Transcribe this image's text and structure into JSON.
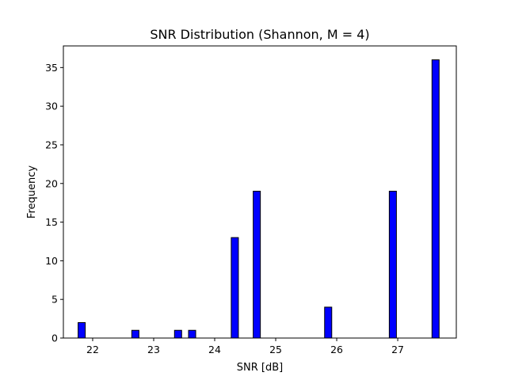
{
  "chart_data": {
    "type": "bar",
    "title": "SNR Distribution (Shannon, M = 4)",
    "xlabel": "SNR [dB]",
    "ylabel": "Frequency",
    "xlim": [
      21.52,
      27.96
    ],
    "ylim": [
      0,
      37.8
    ],
    "xticks": [
      22,
      23,
      24,
      25,
      26,
      27
    ],
    "yticks": [
      0,
      5,
      10,
      15,
      20,
      25,
      30,
      35
    ],
    "bar_color": "#0000ff",
    "bar_edge_color": "#000000",
    "bin_width": 0.117,
    "bars": [
      {
        "x": 21.82,
        "value": 2
      },
      {
        "x": 22.7,
        "value": 1
      },
      {
        "x": 23.4,
        "value": 1
      },
      {
        "x": 23.63,
        "value": 1
      },
      {
        "x": 24.33,
        "value": 13
      },
      {
        "x": 24.69,
        "value": 19
      },
      {
        "x": 25.86,
        "value": 4
      },
      {
        "x": 26.92,
        "value": 19
      },
      {
        "x": 27.62,
        "value": 36
      }
    ],
    "grid": false,
    "legend": "none"
  }
}
